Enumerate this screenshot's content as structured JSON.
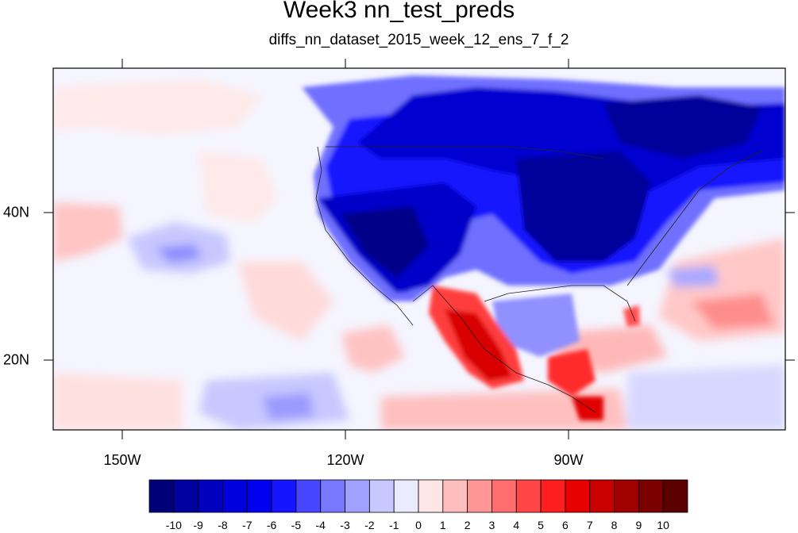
{
  "title": "Week3 nn_test_preds",
  "subtitle": "diffs_nn_dataset_2015_week_12_ens_7_f_2",
  "lon_labels": [
    "150W",
    "120W",
    "90W"
  ],
  "lat_labels": [
    "40N",
    "20N"
  ],
  "colorbar": {
    "labels": [
      "-10",
      "-9",
      "-8",
      "-7",
      "-6",
      "-5",
      "-4",
      "-3",
      "-2",
      "-1",
      "0",
      "1",
      "2",
      "3",
      "4",
      "5",
      "6",
      "7",
      "8",
      "9",
      "10"
    ],
    "colors": [
      "#000078",
      "#00009e",
      "#0000be",
      "#0000dc",
      "#0000f0",
      "#1414ff",
      "#4646ff",
      "#7878ff",
      "#a0a0ff",
      "#c8c8ff",
      "#ebebff",
      "#ffe6e6",
      "#ffbebe",
      "#ff9696",
      "#ff6e6e",
      "#ff4646",
      "#ff1e1e",
      "#e60000",
      "#c80000",
      "#a00000",
      "#7a0000",
      "#5a0000"
    ]
  }
}
